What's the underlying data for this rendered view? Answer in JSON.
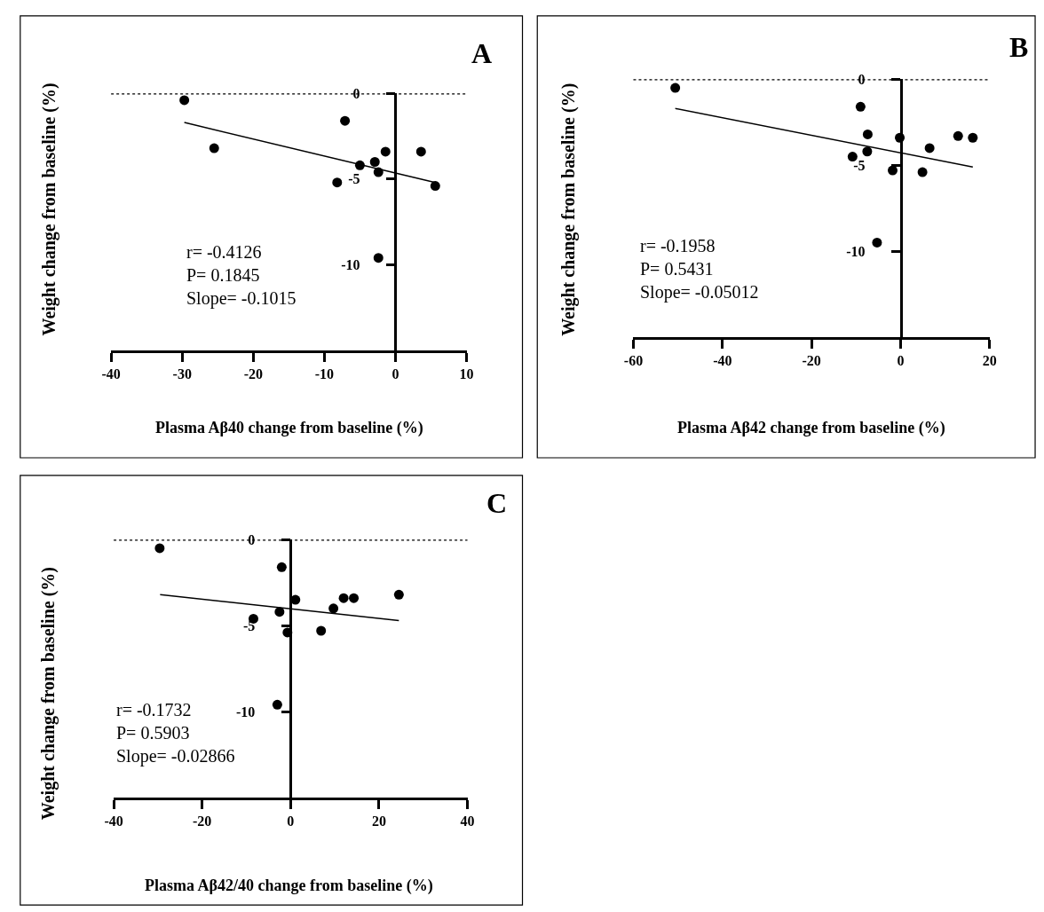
{
  "chart_data": [
    {
      "type": "scatter",
      "title": "A",
      "xlabel": "Plasma Aβ40 change from baseline (%)",
      "ylabel": "Weight change from baseline (%)",
      "xlim": [
        -40,
        10
      ],
      "xticks": [
        -40,
        -30,
        -20,
        -10,
        0,
        10
      ],
      "ylim": [
        -15,
        0
      ],
      "yticks": [
        0,
        -5,
        -10
      ],
      "series": [
        {
          "type": "scatter",
          "marker": "circle",
          "color": "#000000",
          "x": [
            -29.7,
            -25.5,
            -7.1,
            -5.0,
            -2.9,
            -2.4,
            -1.4,
            3.6,
            -8.2,
            5.6,
            -2.4
          ],
          "values": [
            -0.4,
            -3.2,
            -1.6,
            -4.2,
            -4.0,
            -4.6,
            -3.4,
            -3.4,
            -5.2,
            -5.4,
            -9.6
          ]
        },
        {
          "type": "line",
          "color": "#000000",
          "x": [
            -29.7,
            5.6
          ],
          "values": [
            -1.7,
            -5.2
          ]
        }
      ],
      "ref_lines": [
        {
          "axis": "y",
          "value": 0,
          "line_style": "dotted"
        }
      ],
      "annotations": [
        "r= -0.4126",
        "P= 0.1845",
        "Slope= -0.1015"
      ]
    },
    {
      "type": "scatter",
      "title": "B",
      "xlabel": "Plasma Aβ42 change from baseline (%)",
      "ylabel": "Weight change from baseline (%)",
      "xlim": [
        -60,
        20
      ],
      "xticks": [
        -60,
        -40,
        -20,
        0,
        20
      ],
      "ylim": [
        -15,
        0
      ],
      "yticks": [
        0,
        -5,
        -10
      ],
      "series": [
        {
          "type": "scatter",
          "marker": "circle",
          "color": "#000000",
          "x": [
            -50.6,
            -9.0,
            -7.4,
            -7.5,
            -10.8,
            -0.2,
            -1.8,
            6.5,
            4.9,
            12.9,
            16.2,
            -5.3
          ],
          "values": [
            -0.5,
            -1.6,
            -3.2,
            -4.2,
            -4.5,
            -3.4,
            -5.3,
            -4.0,
            -5.4,
            -3.3,
            -3.4,
            -9.5
          ]
        },
        {
          "type": "line",
          "color": "#000000",
          "x": [
            -50.6,
            16.2
          ],
          "values": [
            -1.7,
            -5.1
          ]
        }
      ],
      "ref_lines": [
        {
          "axis": "y",
          "value": 0,
          "line_style": "dotted"
        }
      ],
      "annotations": [
        "r= -0.1958",
        "P= 0.5431",
        "Slope= -0.05012"
      ]
    },
    {
      "type": "scatter",
      "title": "C",
      "xlabel": "Plasma Aβ42/40 change from baseline (%)",
      "ylabel": "Weight change from baseline (%)",
      "xlim": [
        -40,
        40
      ],
      "xticks": [
        -40,
        -20,
        0,
        20,
        40
      ],
      "ylim": [
        -15,
        0
      ],
      "yticks": [
        0,
        -5,
        -10
      ],
      "series": [
        {
          "type": "scatter",
          "marker": "circle",
          "color": "#000000",
          "x": [
            -29.6,
            -2.0,
            1.1,
            -8.4,
            -2.5,
            -0.7,
            6.9,
            9.7,
            12.0,
            14.3,
            24.5,
            -3.0
          ],
          "values": [
            -0.5,
            -1.6,
            -3.5,
            -4.6,
            -4.2,
            -5.4,
            -5.3,
            -4.0,
            -3.4,
            -3.4,
            -3.2,
            -9.6
          ]
        },
        {
          "type": "line",
          "color": "#000000",
          "x": [
            -29.5,
            24.5
          ],
          "values": [
            -3.2,
            -4.7
          ]
        }
      ],
      "ref_lines": [
        {
          "axis": "y",
          "value": 0,
          "line_style": "dotted"
        }
      ],
      "annotations": [
        "r= -0.1732",
        "P= 0.5903",
        "Slope= -0.02866"
      ]
    }
  ]
}
